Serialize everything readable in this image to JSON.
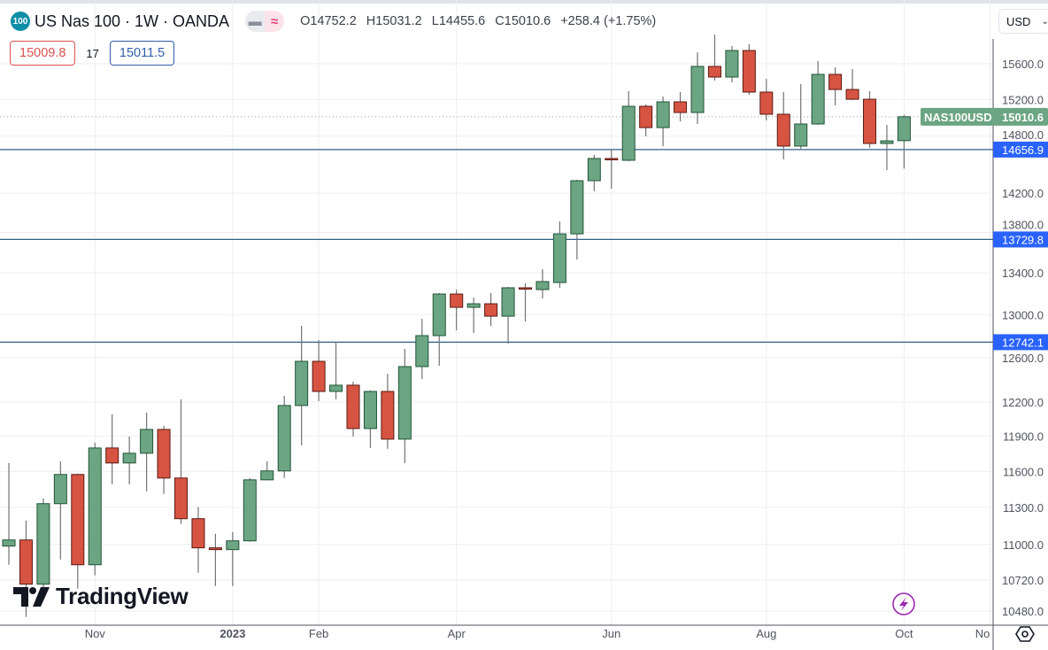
{
  "header": {
    "symbol_badge": "100",
    "title": "US Nas 100 · 1W · OANDA",
    "icons": [
      "collapse-icon",
      "compare-wave-icon"
    ],
    "ohlc": {
      "o_label": "O",
      "o": "14752.2",
      "h_label": "H",
      "h": "15031.2",
      "l_label": "L",
      "l": "14455.6",
      "c_label": "C",
      "c": "15010.6",
      "change": "+258.4 (+1.75%)"
    },
    "sell": "15009.8",
    "spread": "17",
    "buy": "15011.5"
  },
  "currency": "USD",
  "price_tag": {
    "symbol": "NAS100USD",
    "value": "15010.6"
  },
  "branding": "TradingView",
  "chart_data": {
    "type": "candlestick",
    "scale": "log",
    "grid": true,
    "ylim": [
      10373,
      16340
    ],
    "y_ticks": [
      "15600.0",
      "15200.0",
      "14800.0",
      "14200.0",
      "13800.0",
      "13400.0",
      "13000.0",
      "12600.0",
      "12200.0",
      "11900.0",
      "11600.0",
      "11300.0",
      "11000.0",
      "10720.0",
      "10480.0"
    ],
    "x_ticks": [
      {
        "label": "Nov",
        "date": "2022-11-06"
      },
      {
        "label": "2023",
        "date": "2023-01-01",
        "bold": true
      },
      {
        "label": "Feb",
        "date": "2023-02-05"
      },
      {
        "label": "Apr",
        "date": "2023-04-02"
      },
      {
        "label": "Jun",
        "date": "2023-06-04"
      },
      {
        "label": "Aug",
        "date": "2023-08-06"
      },
      {
        "label": "Oct",
        "date": "2023-10-01"
      },
      {
        "label": "No",
        "date": "2023-11-05"
      }
    ],
    "horizontal_lines": [
      {
        "value": 14656.9,
        "label": "14656.9"
      },
      {
        "value": 13729.8,
        "label": "13729.8"
      },
      {
        "value": 12742.1,
        "label": "12742.1"
      }
    ],
    "last_price": 15010.6,
    "colors": {
      "up": "#6ba583",
      "up_border": "#225437",
      "down": "#d75442",
      "down_border": "#5b1a13",
      "wick": "#737375",
      "level_line": "#2f5f86",
      "level_label": "#2962ff",
      "price_tag": "#6ba583"
    },
    "dates": [
      "2022-10-02",
      "2022-10-09",
      "2022-10-16",
      "2022-10-23",
      "2022-10-30",
      "2022-11-06",
      "2022-11-13",
      "2022-11-20",
      "2022-11-27",
      "2022-12-04",
      "2022-12-11",
      "2022-12-18",
      "2022-12-25",
      "2023-01-01",
      "2023-01-08",
      "2023-01-15",
      "2023-01-22",
      "2023-01-29",
      "2023-02-05",
      "2023-02-12",
      "2023-02-19",
      "2023-02-26",
      "2023-03-05",
      "2023-03-12",
      "2023-03-19",
      "2023-03-26",
      "2023-04-02",
      "2023-04-09",
      "2023-04-16",
      "2023-04-23",
      "2023-04-30",
      "2023-05-07",
      "2023-05-14",
      "2023-05-21",
      "2023-05-28",
      "2023-06-04",
      "2023-06-11",
      "2023-06-18",
      "2023-06-25",
      "2023-07-02",
      "2023-07-09",
      "2023-07-16",
      "2023-07-23",
      "2023-07-30",
      "2023-08-06",
      "2023-08-13",
      "2023-08-20",
      "2023-08-27",
      "2023-09-03",
      "2023-09-10",
      "2023-09-17",
      "2023-09-24",
      "2023-10-01"
    ],
    "ohlc": [
      [
        10987,
        11671,
        10839,
        11036
      ],
      [
        11036,
        11193,
        10435,
        10687
      ],
      [
        10687,
        11375,
        10653,
        11331
      ],
      [
        11331,
        11686,
        10881,
        11574
      ],
      [
        11574,
        11581,
        10653,
        10839
      ],
      [
        10839,
        11845,
        10756,
        11799
      ],
      [
        11799,
        12091,
        11492,
        11671
      ],
      [
        11671,
        11898,
        11492,
        11754
      ],
      [
        11754,
        12106,
        11433,
        11959
      ],
      [
        11959,
        11990,
        11411,
        11544
      ],
      [
        11544,
        12224,
        11165,
        11208
      ],
      [
        11208,
        11302,
        10777,
        10973
      ],
      [
        10973,
        11086,
        10673,
        10959
      ],
      [
        10959,
        11100,
        10673,
        11029
      ],
      [
        11029,
        11544,
        11022,
        11529
      ],
      [
        11529,
        11686,
        11529,
        11604
      ],
      [
        11604,
        12255,
        11544,
        12169
      ],
      [
        12169,
        12894,
        11822,
        12566
      ],
      [
        12566,
        12762,
        12208,
        12294
      ],
      [
        12294,
        12745,
        12224,
        12350
      ],
      [
        12350,
        12381,
        11898,
        11967
      ],
      [
        11967,
        12302,
        11799,
        12294
      ],
      [
        12294,
        12453,
        11792,
        11875
      ],
      [
        11875,
        12680,
        11671,
        12518
      ],
      [
        12518,
        12960,
        12405,
        12803
      ],
      [
        12803,
        13205,
        12526,
        13196
      ],
      [
        13196,
        13239,
        12852,
        13069
      ],
      [
        13069,
        13162,
        12828,
        13103
      ],
      [
        13103,
        13205,
        12894,
        12985
      ],
      [
        12985,
        13264,
        12729,
        13256
      ],
      [
        13256,
        13299,
        12935,
        13247
      ],
      [
        13239,
        13436,
        13154,
        13316
      ],
      [
        13307,
        13911,
        13256,
        13786
      ],
      [
        13786,
        14339,
        13531,
        14329
      ],
      [
        14329,
        14600,
        14219,
        14562
      ],
      [
        14562,
        14665,
        14246,
        14553
      ],
      [
        14543,
        15292,
        14534,
        15125
      ],
      [
        15125,
        15145,
        14798,
        14893
      ],
      [
        14893,
        15233,
        14694,
        15174
      ],
      [
        15174,
        15282,
        14961,
        15057
      ],
      [
        15057,
        15731,
        14932,
        15570
      ],
      [
        15570,
        15935,
        15410,
        15450
      ],
      [
        15450,
        15802,
        15390,
        15751
      ],
      [
        15751,
        15823,
        15252,
        15282
      ],
      [
        15282,
        15430,
        14970,
        15038
      ],
      [
        15038,
        15282,
        14553,
        14694
      ],
      [
        14694,
        15371,
        14665,
        14932
      ],
      [
        14932,
        15630,
        14922,
        15480
      ],
      [
        15480,
        15560,
        15135,
        15311
      ],
      [
        15311,
        15540,
        15194,
        15203
      ],
      [
        15203,
        15292,
        14675,
        14722
      ],
      [
        14722,
        14922,
        14440,
        14750
      ],
      [
        14752.2,
        15031.2,
        14455.6,
        15010.6
      ]
    ]
  }
}
